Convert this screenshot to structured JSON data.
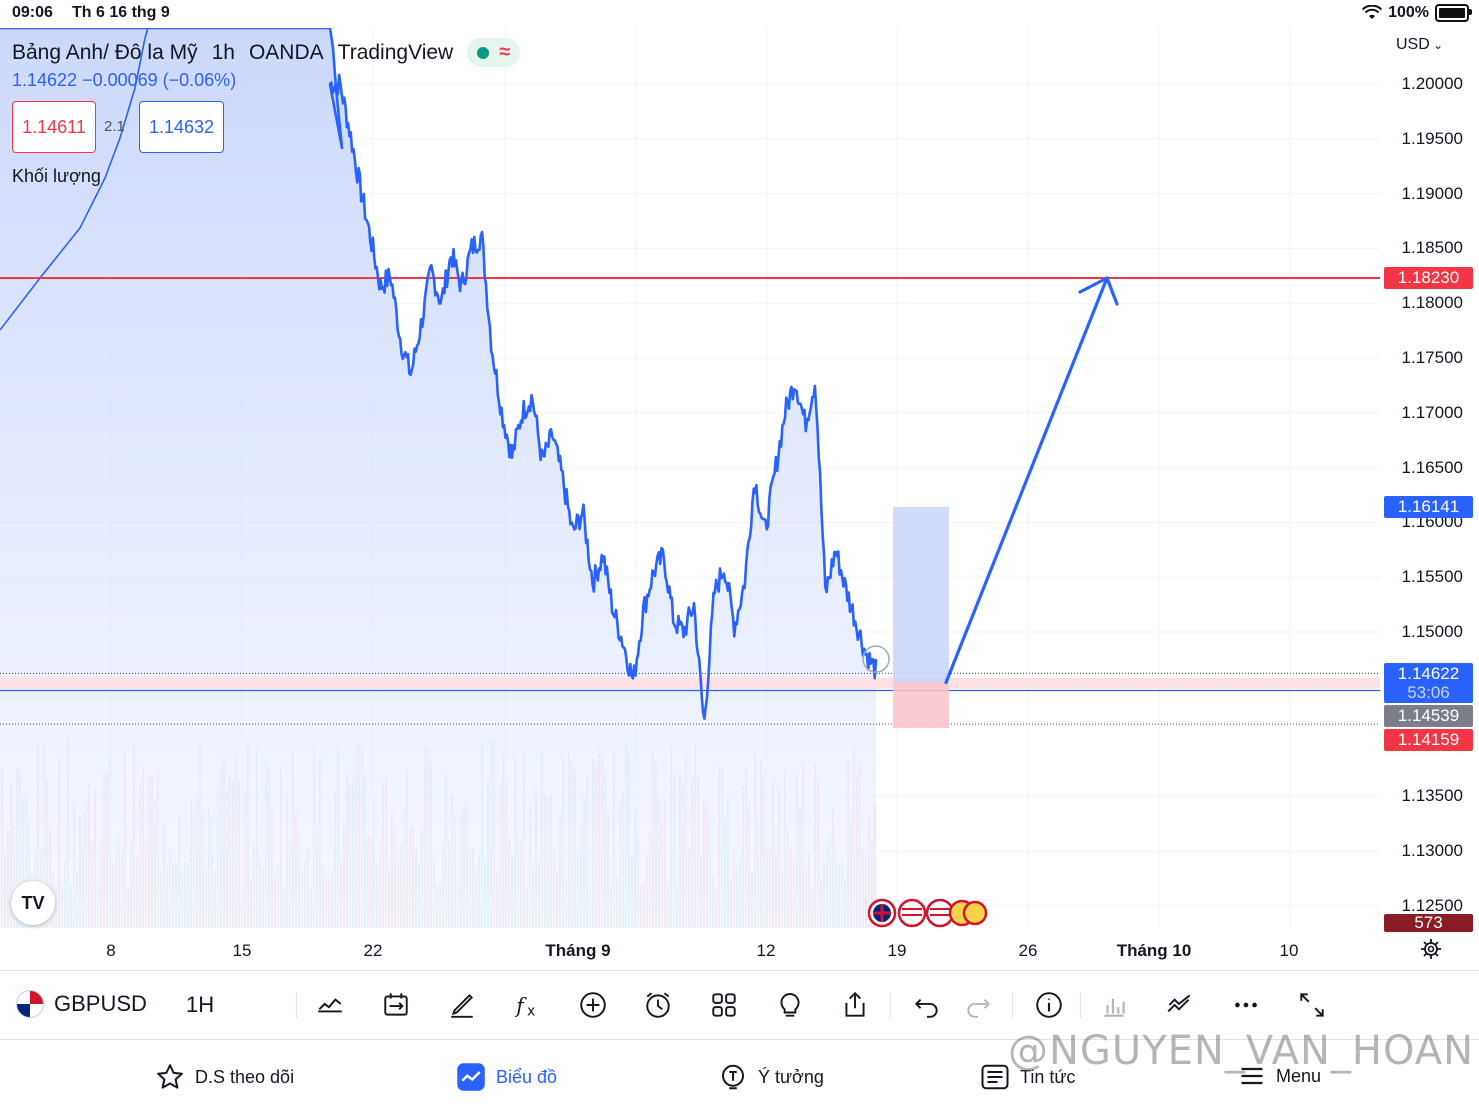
{
  "status_bar": {
    "time": "09:06",
    "date": "Th 6 16 thg 9",
    "battery": "100%"
  },
  "header": {
    "symbol_name": "Bảng Anh/ Đô la Mỹ",
    "interval": "1h",
    "broker": "OANDA",
    "platform": "TradingView",
    "price_change": "1.14622  −0.00069 (−0.06%)",
    "bid": "1.14611",
    "spread": "2.1",
    "ask": "1.14632",
    "volume_label": "Khối lượng"
  },
  "currency": "USD",
  "colors": {
    "line": "#2962ff",
    "fill": "#dbe3fb",
    "resistance": "#f23645",
    "accent": "#2962ff"
  },
  "price_scale": {
    "ticks": [
      "1.20000",
      "1.19500",
      "1.19000",
      "1.18500",
      "1.18000",
      "1.17500",
      "1.17000",
      "1.16500",
      "1.16000",
      "1.15500",
      "1.15000",
      "1.13500",
      "1.13000",
      "1.12500"
    ],
    "tags": {
      "resistance": "1.18230",
      "target": "1.16141",
      "last": "1.14622",
      "countdown": "53:06",
      "grey": "1.14539",
      "stop": "1.14159",
      "volume": "573"
    }
  },
  "time_axis": {
    "labels": [
      {
        "text": "8",
        "bold": false
      },
      {
        "text": "15",
        "bold": false
      },
      {
        "text": "22",
        "bold": false
      },
      {
        "text": "Tháng 9",
        "bold": true
      },
      {
        "text": "12",
        "bold": false
      },
      {
        "text": "19",
        "bold": false
      },
      {
        "text": "26",
        "bold": false
      },
      {
        "text": "Tháng 10",
        "bold": true
      },
      {
        "text": "10",
        "bold": false
      }
    ]
  },
  "chart_data": {
    "type": "line",
    "symbol": "GBPUSD",
    "series": [
      {
        "values": [
          1.2,
          1.2,
          1.1955,
          1.1905,
          1.186,
          1.1815,
          1.1825,
          1.1765,
          1.1735,
          1.178,
          1.183,
          1.18,
          1.1845,
          1.1815,
          1.185,
          1.1862,
          1.176,
          1.17,
          1.166,
          1.17,
          1.1715,
          1.1655,
          1.168,
          1.164,
          1.159,
          1.161,
          1.1545,
          1.157,
          1.152,
          1.149,
          1.1455,
          1.152,
          1.1555,
          1.157,
          1.151,
          1.15,
          1.1525,
          1.1415,
          1.1535,
          1.156,
          1.1505,
          1.1545,
          1.164,
          1.159,
          1.1645,
          1.17,
          1.173,
          1.169,
          1.173,
          1.1535,
          1.1575,
          1.154,
          1.151,
          1.148,
          1.1465
        ]
      }
    ],
    "ylim": [
      1.1235,
      1.2035
    ],
    "horizontal_levels": [
      1.1823,
      1.14622,
      1.14539,
      1.14159
    ],
    "position": {
      "entry": 1.14539,
      "target": 1.16141,
      "stop": 1.14159
    },
    "projection_arrow_to": 1.1823
  },
  "toolbar": {
    "symbol": "GBPUSD",
    "interval": "1H",
    "icons": [
      "indicators-chart-icon",
      "compare-icon",
      "drawing-pen-icon",
      "fx-icon",
      "add-icon",
      "alert-clock-icon",
      "layout-grid-icon",
      "idea-bulb-icon",
      "share-icon",
      "undo-icon",
      "redo-icon",
      "info-icon",
      "bar-chart-icon",
      "line-tool-icon",
      "more-icon",
      "fullscreen-icon"
    ]
  },
  "nav": {
    "watchlist": "D.S theo dõi",
    "chart": "Biểu đồ",
    "ideas": "Ý tưởng",
    "news": "Tin tức",
    "menu": "Menu"
  },
  "watermark": "@NGUYEN_VAN_HOAN",
  "logo_text": "TV"
}
